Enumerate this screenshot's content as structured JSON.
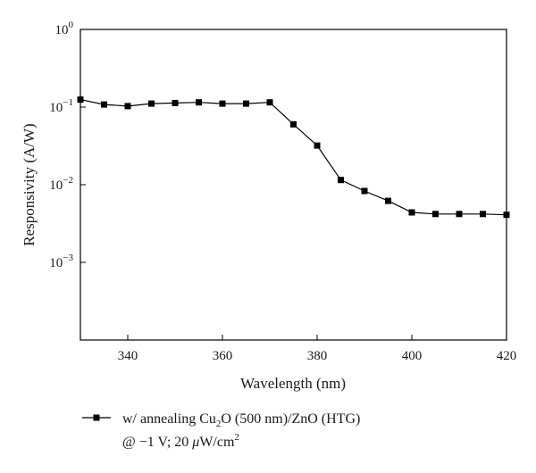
{
  "chart_data": {
    "type": "line",
    "title": "",
    "xlabel": "Wavelength (nm)",
    "ylabel": "Responsivity (A/W)",
    "xlim": [
      330,
      420
    ],
    "ylim": [
      0.0001,
      1
    ],
    "yscale": "log",
    "x_ticks": [
      340,
      360,
      380,
      400,
      420
    ],
    "y_ticks": [
      {
        "value": 0.001,
        "base": "10",
        "exp": "−3"
      },
      {
        "value": 0.01,
        "base": "10",
        "exp": "−2"
      },
      {
        "value": 0.1,
        "base": "10",
        "exp": "−1"
      },
      {
        "value": 1,
        "base": "10",
        "exp": "0"
      }
    ],
    "grid": false,
    "legend_position": "bottom",
    "series": [
      {
        "legend_parts": {
          "prefix": "w/ annealing Cu",
          "sub": "2",
          "suffix": "O (500 nm)/ZnO (HTG)",
          "line2_prefix": "@ −1 V; 20 ",
          "mu": "μ",
          "line2_unit": "W/cm",
          "sup": "2"
        },
        "marker": "square",
        "color": "#000000",
        "x": [
          330,
          335,
          340,
          345,
          350,
          355,
          360,
          365,
          370,
          375,
          380,
          385,
          390,
          395,
          400,
          405,
          410,
          415,
          420
        ],
        "y": [
          0.125,
          0.108,
          0.103,
          0.111,
          0.113,
          0.115,
          0.111,
          0.111,
          0.115,
          0.06,
          0.032,
          0.0115,
          0.0083,
          0.0062,
          0.0044,
          0.0042,
          0.0042,
          0.0042,
          0.0041
        ]
      }
    ]
  }
}
